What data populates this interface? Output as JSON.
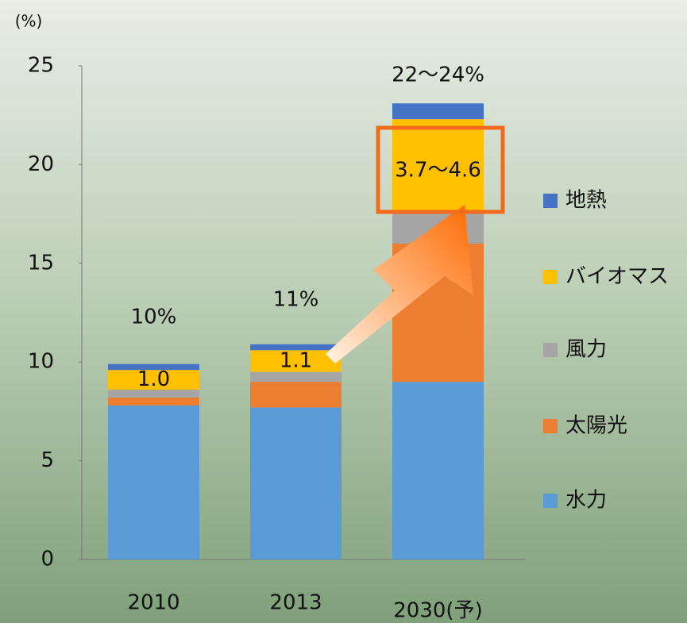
{
  "chart_data": {
    "type": "stacked_bar",
    "y_unit_label": "(%)",
    "categories": [
      "2010",
      "2013",
      "2030(予)"
    ],
    "series": [
      {
        "name": "水力",
        "color": "#5b9bd5",
        "values": [
          7.8,
          7.7,
          9.0
        ]
      },
      {
        "name": "太陽光",
        "color": "#ed7d31",
        "values": [
          0.4,
          1.3,
          7.0
        ]
      },
      {
        "name": "風力",
        "color": "#a5a5a5",
        "values": [
          0.4,
          0.5,
          1.7
        ]
      },
      {
        "name": "バイオマス",
        "color": "#ffc000",
        "values": [
          1.0,
          1.1,
          4.6
        ],
        "value_labels": [
          "1.0",
          "1.1",
          "3.7～4.6"
        ]
      },
      {
        "name": "地熱",
        "color": "#4472c4",
        "values": [
          0.3,
          0.3,
          0.8
        ]
      }
    ],
    "total_labels": [
      "10%",
      "11%",
      "22～24%"
    ],
    "ylim": [
      0,
      25
    ],
    "yticks": [
      0,
      5,
      10,
      15,
      20,
      25
    ]
  }
}
